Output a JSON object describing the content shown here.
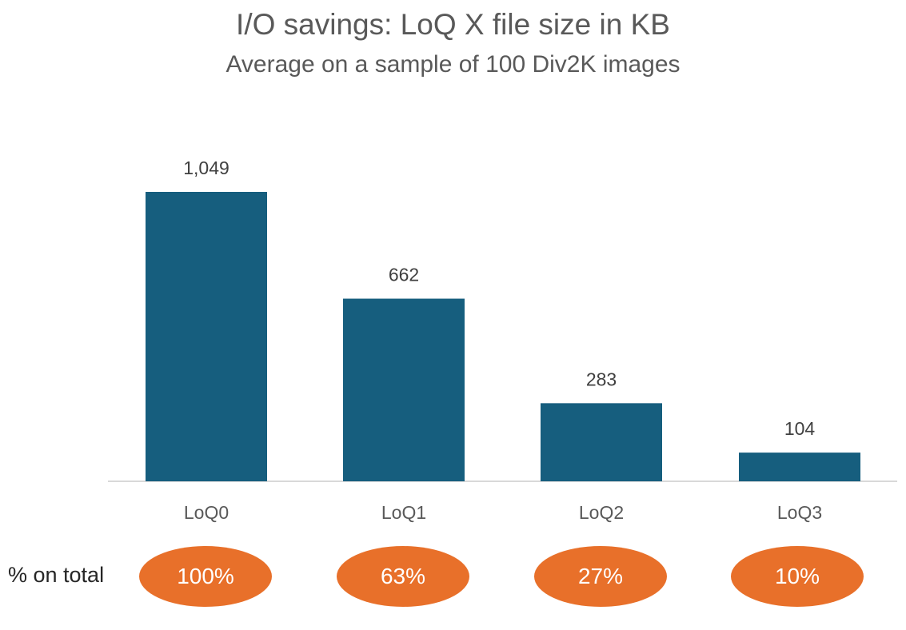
{
  "chart_data": {
    "type": "bar",
    "title": "I/O savings: LoQ X file size in KB",
    "subtitle": "Average on a sample of 100 Div2K images",
    "categories": [
      "LoQ0",
      "LoQ1",
      "LoQ2",
      "LoQ3"
    ],
    "values": [
      1049,
      662,
      283,
      104
    ],
    "data_labels": [
      "1,049",
      "662",
      "283",
      "104"
    ],
    "bar_color": "#165e7e",
    "ylim": [
      0,
      1049
    ],
    "grid": false
  },
  "percent_row": {
    "label": "% on total",
    "values": [
      "100%",
      "63%",
      "27%",
      "10%"
    ],
    "pill_color": "#e8702a"
  }
}
